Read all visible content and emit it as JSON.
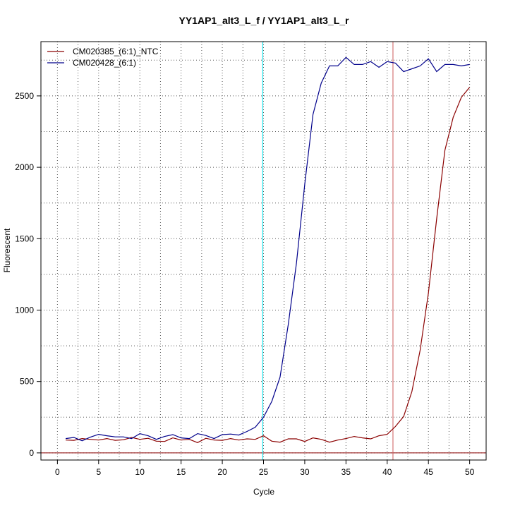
{
  "chart_data": {
    "type": "line",
    "title": "YY1AP1_alt3_L_f / YY1AP1_alt3_L_r",
    "xlabel": "Cycle",
    "ylabel": "Fluorescent",
    "xlim": [
      -2,
      52
    ],
    "ylim": [
      -50,
      2880
    ],
    "x_ticks": [
      0,
      5,
      10,
      15,
      20,
      25,
      30,
      35,
      40,
      45,
      50
    ],
    "y_ticks": [
      0,
      500,
      1000,
      1500,
      2000,
      2500
    ],
    "grid": true,
    "legend_position": "top-left",
    "baseline": {
      "y": 0,
      "color": "#8B0000"
    },
    "threshold_lines": [
      {
        "x": 24.9,
        "color": "#00E5EE"
      },
      {
        "x": 40.7,
        "color": "#CD5C5C"
      }
    ],
    "series": [
      {
        "name": "CM020385_(6:1)_NTC",
        "color": "#8B0000",
        "x": [
          1,
          2,
          3,
          4,
          5,
          6,
          7,
          8,
          9,
          10,
          11,
          12,
          13,
          14,
          15,
          16,
          17,
          18,
          19,
          20,
          21,
          22,
          23,
          24,
          25,
          26,
          27,
          28,
          29,
          30,
          31,
          32,
          33,
          34,
          35,
          36,
          37,
          38,
          39,
          40,
          41,
          42,
          43,
          44,
          45,
          46,
          47,
          48,
          49,
          50
        ],
        "values": [
          90,
          88,
          100,
          95,
          90,
          100,
          88,
          92,
          108,
          95,
          102,
          82,
          80,
          105,
          90,
          95,
          72,
          102,
          90,
          88,
          100,
          90,
          98,
          95,
          120,
          82,
          75,
          98,
          98,
          80,
          105,
          95,
          75,
          90,
          100,
          115,
          105,
          98,
          120,
          130,
          185,
          255,
          430,
          720,
          1120,
          1640,
          2120,
          2350,
          2490,
          2560
        ]
      },
      {
        "name": "CM020428_(6:1)",
        "color": "#00008B",
        "x": [
          1,
          2,
          3,
          4,
          5,
          6,
          7,
          8,
          9,
          10,
          11,
          12,
          13,
          14,
          15,
          16,
          17,
          18,
          19,
          20,
          21,
          22,
          23,
          24,
          25,
          26,
          27,
          28,
          29,
          30,
          31,
          32,
          33,
          34,
          35,
          36,
          37,
          38,
          39,
          40,
          41,
          42,
          43,
          44,
          45,
          46,
          47,
          48,
          49,
          50
        ],
        "values": [
          100,
          108,
          85,
          110,
          130,
          120,
          112,
          112,
          100,
          135,
          120,
          95,
          115,
          128,
          105,
          100,
          135,
          122,
          100,
          128,
          132,
          125,
          150,
          180,
          250,
          360,
          530,
          900,
          1330,
          1880,
          2370,
          2590,
          2710,
          2710,
          2770,
          2720,
          2720,
          2740,
          2700,
          2740,
          2730,
          2670,
          2690,
          2710,
          2760,
          2670,
          2720,
          2720,
          2710,
          2720
        ]
      }
    ]
  }
}
